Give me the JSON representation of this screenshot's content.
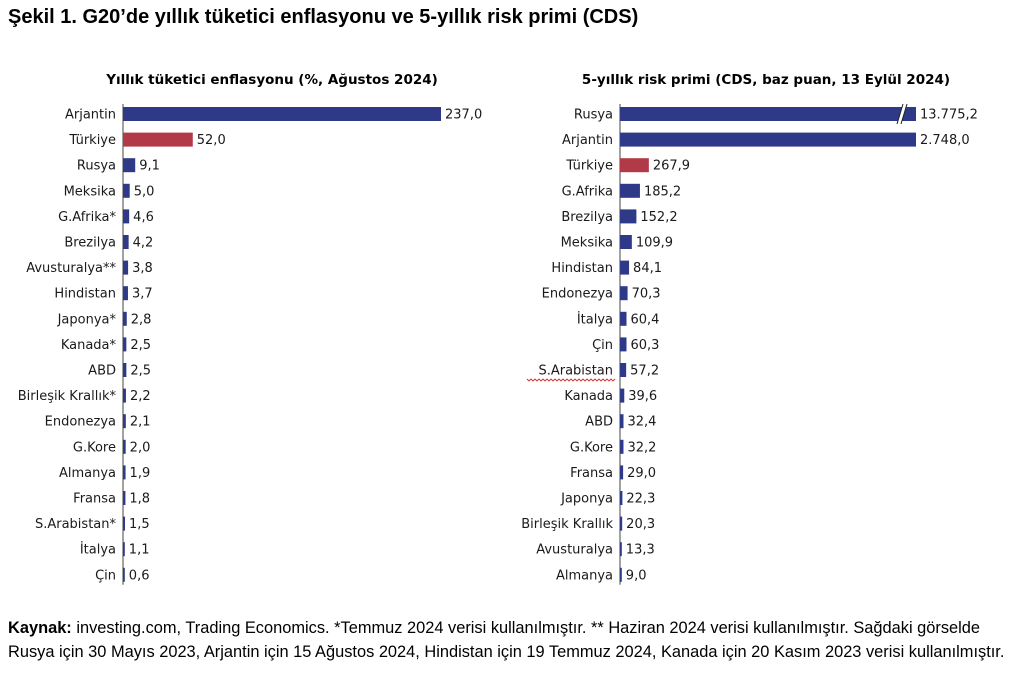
{
  "figure": {
    "title": "Şekil 1. G20’de yıllık tüketici enflasyonu ve 5-yıllık risk primi (CDS)"
  },
  "colors": {
    "bar": "#2e3a87",
    "highlight": "#b23a48",
    "axis": "#444444"
  },
  "chart_data": [
    {
      "type": "bar",
      "orientation": "horizontal",
      "title": "Yıllık tüketici enflasyonu (%, Ağustos 2024)",
      "categories": [
        "Arjantin",
        "Türkiye",
        "Rusya",
        "Meksika",
        "G.Afrika*",
        "Brezilya",
        "Avusturalya**",
        "Hindistan",
        "Japonya*",
        "Kanada*",
        "ABD",
        "Birleşik Krallık*",
        "Endonezya",
        "G.Kore",
        "Almanya",
        "Fransa",
        "S.Arabistan*",
        "İtalya",
        "Çin"
      ],
      "values": [
        237.0,
        52.0,
        9.1,
        5.0,
        4.6,
        4.2,
        3.8,
        3.7,
        2.8,
        2.5,
        2.5,
        2.2,
        2.1,
        2.0,
        1.9,
        1.8,
        1.5,
        1.1,
        0.6
      ],
      "value_labels": [
        "237,0",
        "52,0",
        "9,1",
        "5,0",
        "4,6",
        "4,2",
        "3,8",
        "3,7",
        "2,8",
        "2,5",
        "2,5",
        "2,2",
        "2,1",
        "2,0",
        "1,9",
        "1,8",
        "1,5",
        "1,1",
        "0,6"
      ],
      "highlight": [
        "Türkiye"
      ],
      "xlim": [
        0,
        237
      ],
      "grid": false,
      "legend": "none"
    },
    {
      "type": "bar",
      "orientation": "horizontal",
      "title": "5-yıllık risk primi (CDS, baz puan, 13 Eylül 2024)",
      "categories": [
        "Rusya",
        "Arjantin",
        "Türkiye",
        "G.Afrika",
        "Brezilya",
        "Meksika",
        "Hindistan",
        "Endonezya",
        "İtalya",
        "Çin",
        "S.Arabistan",
        "Kanada",
        "ABD",
        "G.Kore",
        "Fransa",
        "Japonya",
        "Birleşik Krallık",
        "Avusturalya",
        "Almanya"
      ],
      "values": [
        13775.2,
        2748.0,
        267.9,
        185.2,
        152.2,
        109.9,
        84.1,
        70.3,
        60.4,
        60.3,
        57.2,
        39.6,
        32.4,
        32.2,
        29.0,
        22.3,
        20.3,
        13.3,
        9.0
      ],
      "value_labels": [
        "13.775,2",
        "2.748,0",
        "267,9",
        "185,2",
        "152,2",
        "109,9",
        "84,1",
        "70,3",
        "60,4",
        "60,3",
        "57,2",
        "39,6",
        "32,4",
        "32,2",
        "29,0",
        "22,3",
        "20,3",
        "13,3",
        "9,0"
      ],
      "highlight": [
        "Türkiye"
      ],
      "axis_break": [
        "Rusya"
      ],
      "xlim": [
        0,
        2748
      ],
      "grid": false,
      "legend": "none"
    }
  ],
  "footnote": {
    "source_label": "Kaynak:",
    "text": " investing.com, Trading Economics. *Temmuz 2024 verisi kullanılmıştır. ** Haziran 2024 verisi kullanılmıştır. Sağdaki görselde Rusya için 30 Mayıs 2023, Arjantin için 15 Ağustos 2024, Hindistan için 19 Temmuz 2024, Kanada için 20 Kasım 2023 verisi kullanılmıştır."
  }
}
